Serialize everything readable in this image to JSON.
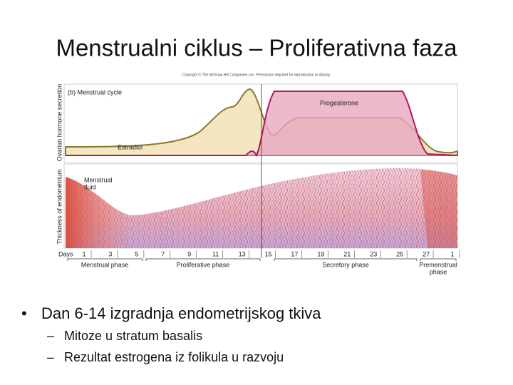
{
  "title": "Menstrualni ciklus – Proliferativna faza",
  "figure": {
    "copyright": "Copyright © The McGraw-Hill Companies, Inc. Permission required for reproduction or display.",
    "panel_label": "(b) Menstrual cycle",
    "y_label_top": "Ovarian hormone secretion",
    "y_label_bottom": "Thickness of endometrium",
    "progesterone": "Progesterone",
    "estradiol": "Estradiol",
    "menstrual_fluid": [
      "Menstrual",
      "fluid"
    ],
    "days_label": "Days",
    "days": [
      1,
      3,
      5,
      7,
      9,
      11,
      13,
      15,
      17,
      19,
      21,
      23,
      25,
      27,
      1
    ],
    "phases": [
      "Menstrual phase",
      "Proliferative phase",
      "Secretory phase"
    ],
    "premenstrual": [
      "Premenstrual",
      "phase"
    ]
  },
  "bullets": [
    {
      "text": "Dan 6-14 izgradnja endometrijskog tkiva",
      "sub": [
        "Mitoze u stratum basalis",
        "Rezultat estrogena iz folikula u razvoju"
      ]
    }
  ]
}
